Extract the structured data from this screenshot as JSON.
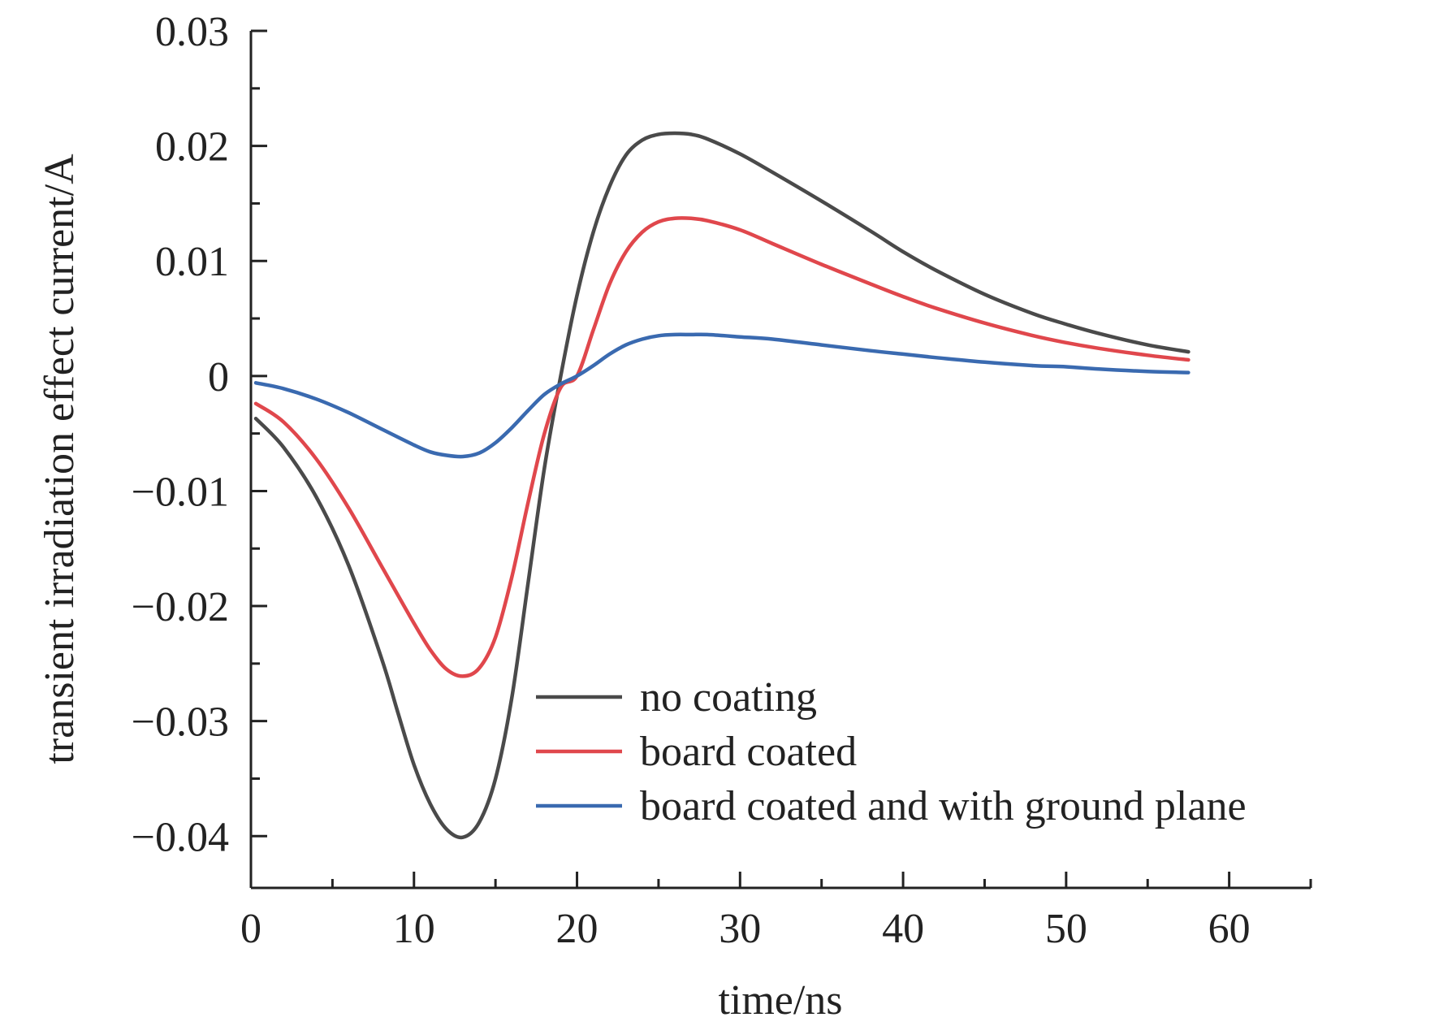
{
  "chart_data": {
    "type": "line",
    "title": "",
    "xlabel": "time/ns",
    "ylabel": "transient irradiation effect current/A",
    "xlim": [
      0,
      65
    ],
    "ylim": [
      -0.0445,
      0.03
    ],
    "x_ticks": [
      0,
      10,
      20,
      30,
      40,
      50,
      60
    ],
    "x_tick_labels": [
      "0",
      "10",
      "20",
      "30",
      "40",
      "50",
      "60"
    ],
    "y_ticks": [
      0.03,
      0.02,
      0.01,
      0,
      -0.01,
      -0.02,
      -0.03,
      -0.04
    ],
    "y_tick_labels": [
      "0.03",
      "0.02",
      "0.01",
      "0",
      "−0.01",
      "−0.02",
      "−0.03",
      "−0.04"
    ],
    "grid": false,
    "legend_position": "bottom-right",
    "series": [
      {
        "name": "no coating",
        "color": "#4a4a4a",
        "x": [
          0.3,
          2,
          4,
          6,
          8,
          9,
          10,
          11,
          12,
          13,
          14,
          15,
          16,
          17,
          18,
          19,
          20,
          21,
          22,
          23,
          24,
          25,
          26,
          27,
          28,
          30,
          32,
          35,
          38,
          40,
          42,
          45,
          48,
          50,
          52,
          55,
          57.5
        ],
        "values": [
          -0.0037,
          -0.0062,
          -0.0105,
          -0.0165,
          -0.0245,
          -0.0292,
          -0.0338,
          -0.0372,
          -0.0394,
          -0.0401,
          -0.0388,
          -0.035,
          -0.028,
          -0.018,
          -0.008,
          0.0,
          0.007,
          0.0125,
          0.0165,
          0.0192,
          0.0205,
          0.021,
          0.0211,
          0.021,
          0.0206,
          0.0193,
          0.0177,
          0.0152,
          0.0126,
          0.0108,
          0.0092,
          0.0071,
          0.0054,
          0.0045,
          0.0037,
          0.0027,
          0.0021
        ]
      },
      {
        "name": "board coated",
        "color": "#e0474c",
        "x": [
          0.3,
          2,
          4,
          6,
          8,
          10,
          11,
          12,
          13,
          14,
          15,
          16,
          17,
          18,
          19,
          20,
          21,
          22,
          23,
          24,
          25,
          26,
          27,
          28,
          30,
          32,
          35,
          38,
          40,
          42,
          45,
          48,
          50,
          52,
          55,
          57.5
        ],
        "values": [
          -0.0024,
          -0.004,
          -0.0072,
          -0.0115,
          -0.0165,
          -0.0215,
          -0.0238,
          -0.0255,
          -0.0261,
          -0.0254,
          -0.0227,
          -0.0175,
          -0.011,
          -0.005,
          -0.001,
          0.0,
          0.004,
          0.008,
          0.0108,
          0.0125,
          0.0134,
          0.0137,
          0.0137,
          0.0135,
          0.0127,
          0.0115,
          0.0097,
          0.008,
          0.0069,
          0.0059,
          0.0046,
          0.0035,
          0.0029,
          0.0024,
          0.0018,
          0.0014
        ]
      },
      {
        "name": "board coated and with ground plane",
        "color": "#3a6ab0",
        "x": [
          0.3,
          2,
          4,
          6,
          8,
          10,
          11,
          12,
          13,
          14,
          15,
          16,
          17,
          18,
          19,
          20,
          21,
          22,
          23,
          24,
          25,
          26,
          27,
          28,
          30,
          32,
          35,
          38,
          40,
          42,
          45,
          48,
          50,
          52,
          55,
          57.5
        ],
        "values": [
          -0.0006,
          -0.0011,
          -0.002,
          -0.0032,
          -0.0046,
          -0.006,
          -0.0066,
          -0.0069,
          -0.007,
          -0.0067,
          -0.0058,
          -0.0045,
          -0.003,
          -0.0016,
          -0.0007,
          0.0,
          0.0009,
          0.0019,
          0.0027,
          0.0032,
          0.0035,
          0.0036,
          0.0036,
          0.0036,
          0.0034,
          0.0032,
          0.0027,
          0.0022,
          0.0019,
          0.0016,
          0.0012,
          0.0009,
          0.0008,
          0.0006,
          0.0004,
          0.0003
        ]
      }
    ]
  }
}
